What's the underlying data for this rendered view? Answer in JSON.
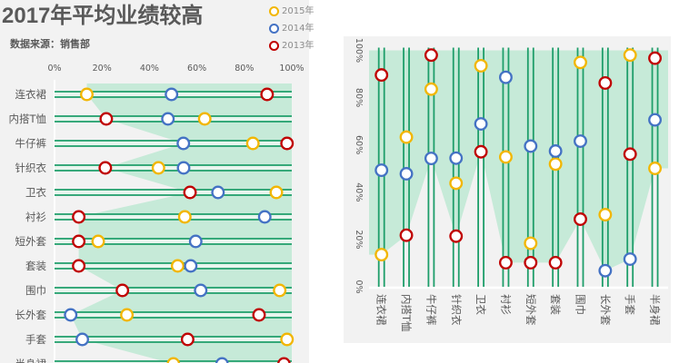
{
  "title": "2017年平均业绩较高",
  "subtitle": "数据来源：销售部",
  "colors": {
    "bg": "#f2f2f2",
    "line": "#1e9e6a",
    "shade": "#c6ead8",
    "y2015": "#f2b600",
    "y2014": "#4472c4",
    "y2013": "#c00000"
  },
  "chart_data": [
    {
      "type": "scatter",
      "orientation": "horizontal",
      "title": "2017年平均业绩较高",
      "subtitle": "数据来源：销售部",
      "xlim": [
        0,
        100
      ],
      "tick_labels": [
        "0%",
        "20%",
        "40%",
        "60%",
        "80%",
        "100%"
      ],
      "legend": {
        "placement": "top-right",
        "entries": [
          "2015年",
          "2014年",
          "2013年"
        ]
      },
      "categories": [
        "连衣裙",
        "内搭T恤",
        "牛仔裤",
        "针织衣",
        "卫衣",
        "衬衫",
        "短外套",
        "套装",
        "围巾",
        "长外套",
        "手套",
        "半身裙"
      ],
      "series": [
        {
          "name": "2015年",
          "values": [
            13.6,
            63.3,
            83.6,
            43.8,
            93.5,
            54.9,
            18.4,
            51.9,
            94.9,
            30.5,
            98,
            50.1
          ]
        },
        {
          "name": "2014年",
          "values": [
            49.3,
            47.8,
            54.3,
            54.4,
            68.9,
            88.6,
            59.5,
            57.4,
            61.6,
            6.8,
            11.7,
            70.6
          ]
        },
        {
          "name": "2013年",
          "values": [
            89.6,
            21.8,
            98,
            21.4,
            57.1,
            10.2,
            10.2,
            10.2,
            28.6,
            86.2,
            56.1,
            96.7
          ]
        }
      ]
    },
    {
      "type": "scatter",
      "orientation": "vertical",
      "ylim": [
        0,
        100
      ],
      "tick_labels": [
        "0%",
        "20%",
        "40%",
        "60%",
        "80%",
        "100%"
      ],
      "categories": [
        "连衣裙",
        "内搭T恤",
        "牛仔裤",
        "针织衣",
        "卫衣",
        "衬衫",
        "短外套",
        "套装",
        "围巾",
        "长外套",
        "手套",
        "半身裙"
      ],
      "series": [
        {
          "name": "2015年",
          "values": [
            13.6,
            63.3,
            83.6,
            43.8,
            93.5,
            54.9,
            18.4,
            51.9,
            94.9,
            30.5,
            98,
            50.1
          ]
        },
        {
          "name": "2014年",
          "values": [
            49.3,
            47.8,
            54.3,
            54.4,
            68.9,
            88.6,
            59.5,
            57.4,
            61.6,
            6.8,
            11.7,
            70.6
          ]
        },
        {
          "name": "2013年",
          "values": [
            89.6,
            21.8,
            98,
            21.4,
            57.1,
            10.2,
            10.2,
            10.2,
            28.6,
            86.2,
            56.1,
            96.7
          ]
        }
      ]
    }
  ]
}
